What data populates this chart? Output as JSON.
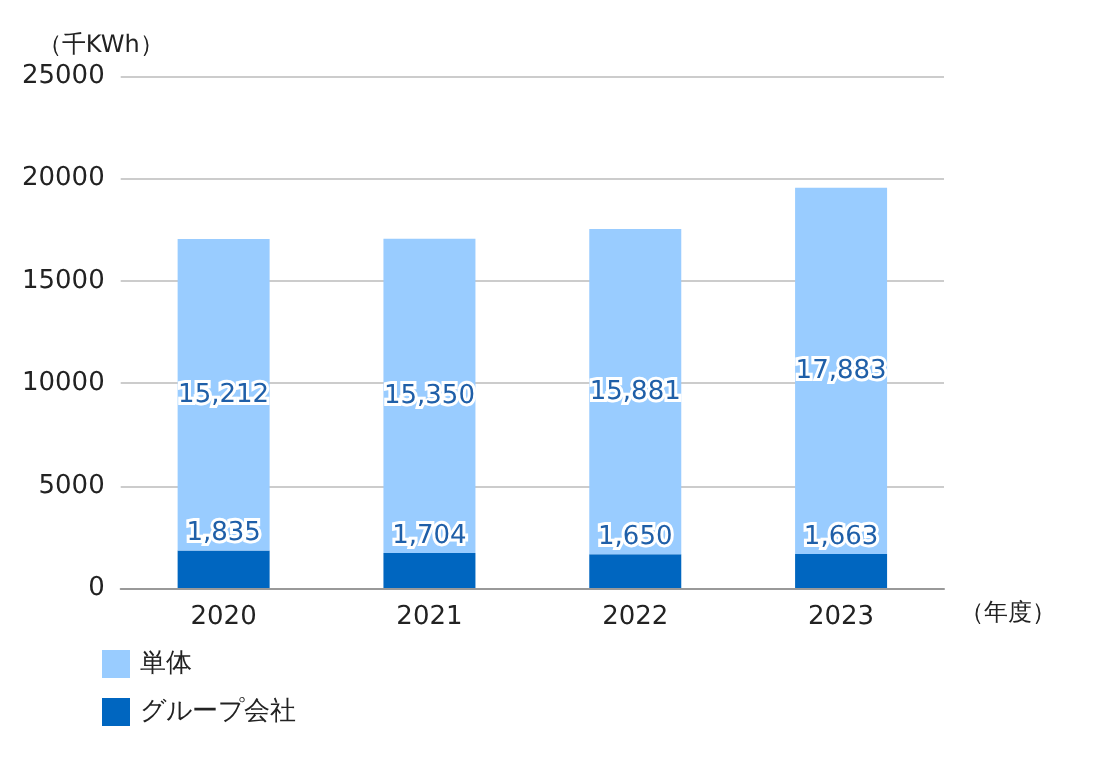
{
  "chart_data": {
    "type": "bar",
    "stacked": true,
    "ylabel": "（千KWh）",
    "xlabel": "（年度）",
    "categories": [
      "2020",
      "2021",
      "2022",
      "2023"
    ],
    "series": [
      {
        "name": "グループ会社",
        "color": "#0066c0",
        "values": [
          1835,
          1704,
          1650,
          1663
        ],
        "value_labels": [
          "1,835",
          "1,704",
          "1,650",
          "1,663"
        ]
      },
      {
        "name": "単体",
        "color": "#99ccff",
        "values": [
          15212,
          15350,
          15881,
          17883
        ],
        "value_labels": [
          "15,212",
          "15,350",
          "15,881",
          "17,883"
        ]
      }
    ],
    "ylim": [
      0,
      25000
    ],
    "yticks": [
      0,
      5000,
      10000,
      15000,
      20000,
      25000
    ],
    "grid": "y",
    "legend": "bottom left"
  }
}
